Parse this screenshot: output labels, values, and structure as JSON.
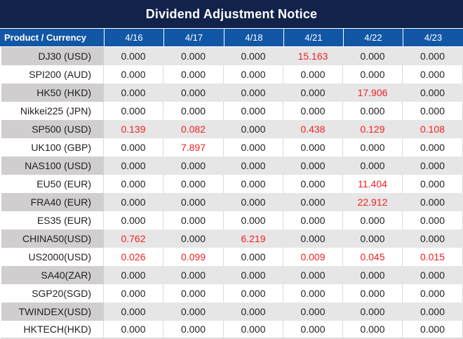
{
  "title": "Dividend Adjustment Notice",
  "colors": {
    "title_bg": "#12224a",
    "header_bg": "#1257a5",
    "header_text": "#ffffff",
    "normal_value": "#1f1f1f",
    "red_value": "#f02020",
    "stripe_product_bg": "#d0cece",
    "stripe_data_bg": "#e7e6e6",
    "white_row_bg": "#ffffff",
    "gridline": "#d9d9d9"
  },
  "chart_data": {
    "type": "table",
    "title": "Dividend Adjustment Notice",
    "header": {
      "product_label": "Product / Currency",
      "dates": [
        "4/16",
        "4/17",
        "4/18",
        "4/21",
        "4/22",
        "4/23"
      ]
    },
    "rows": [
      {
        "product": "DJ30 (USD)",
        "values": [
          "0.000",
          "0.000",
          "0.000",
          "15.163",
          "0.000",
          "0.000"
        ],
        "red_flags": [
          false,
          false,
          false,
          true,
          false,
          false
        ]
      },
      {
        "product": "SPI200 (AUD)",
        "values": [
          "0.000",
          "0.000",
          "0.000",
          "0.000",
          "0.000",
          "0.000"
        ],
        "red_flags": [
          false,
          false,
          false,
          false,
          false,
          false
        ]
      },
      {
        "product": "HK50 (HKD)",
        "values": [
          "0.000",
          "0.000",
          "0.000",
          "0.000",
          "17.906",
          "0.000"
        ],
        "red_flags": [
          false,
          false,
          false,
          false,
          true,
          false
        ]
      },
      {
        "product": "Nikkei225 (JPN)",
        "values": [
          "0.000",
          "0.000",
          "0.000",
          "0.000",
          "0.000",
          "0.000"
        ],
        "red_flags": [
          false,
          false,
          false,
          false,
          false,
          false
        ]
      },
      {
        "product": "SP500 (USD)",
        "values": [
          "0.139",
          "0.082",
          "0.000",
          "0.438",
          "0.129",
          "0.108"
        ],
        "red_flags": [
          true,
          true,
          false,
          true,
          true,
          true
        ]
      },
      {
        "product": "UK100 (GBP)",
        "values": [
          "0.000",
          "7.897",
          "0.000",
          "0.000",
          "0.000",
          "0.000"
        ],
        "red_flags": [
          false,
          true,
          false,
          false,
          false,
          false
        ]
      },
      {
        "product": "NAS100 (USD)",
        "values": [
          "0.000",
          "0.000",
          "0.000",
          "0.000",
          "0.000",
          "0.000"
        ],
        "red_flags": [
          false,
          false,
          false,
          false,
          false,
          false
        ]
      },
      {
        "product": "EU50 (EUR)",
        "values": [
          "0.000",
          "0.000",
          "0.000",
          "0.000",
          "11.404",
          "0.000"
        ],
        "red_flags": [
          false,
          false,
          false,
          false,
          true,
          false
        ]
      },
      {
        "product": "FRA40 (EUR)",
        "values": [
          "0.000",
          "0.000",
          "0.000",
          "0.000",
          "22.912",
          "0.000"
        ],
        "red_flags": [
          false,
          false,
          false,
          false,
          true,
          false
        ]
      },
      {
        "product": "ES35 (EUR)",
        "values": [
          "0.000",
          "0.000",
          "0.000",
          "0.000",
          "0.000",
          "0.000"
        ],
        "red_flags": [
          false,
          false,
          false,
          false,
          false,
          false
        ]
      },
      {
        "product": "CHINA50(USD)",
        "values": [
          "0.762",
          "0.000",
          "6.219",
          "0.000",
          "0.000",
          "0.000"
        ],
        "red_flags": [
          true,
          false,
          true,
          false,
          false,
          false
        ]
      },
      {
        "product": "US2000(USD)",
        "values": [
          "0.026",
          "0.099",
          "0.000",
          "0.009",
          "0.045",
          "0.015"
        ],
        "red_flags": [
          true,
          true,
          false,
          true,
          true,
          true
        ]
      },
      {
        "product": "SA40(ZAR)",
        "values": [
          "0.000",
          "0.000",
          "0.000",
          "0.000",
          "0.000",
          "0.000"
        ],
        "red_flags": [
          false,
          false,
          false,
          false,
          false,
          false
        ]
      },
      {
        "product": "SGP20(SGD)",
        "values": [
          "0.000",
          "0.000",
          "0.000",
          "0.000",
          "0.000",
          "0.000"
        ],
        "red_flags": [
          false,
          false,
          false,
          false,
          false,
          false
        ]
      },
      {
        "product": "TWINDEX(USD)",
        "values": [
          "0.000",
          "0.000",
          "0.000",
          "0.000",
          "0.000",
          "0.000"
        ],
        "red_flags": [
          false,
          false,
          false,
          false,
          false,
          false
        ]
      },
      {
        "product": "HKTECH(HKD)",
        "values": [
          "0.000",
          "0.000",
          "0.000",
          "0.000",
          "0.000",
          "0.000"
        ],
        "red_flags": [
          false,
          false,
          false,
          false,
          false,
          false
        ]
      }
    ]
  }
}
